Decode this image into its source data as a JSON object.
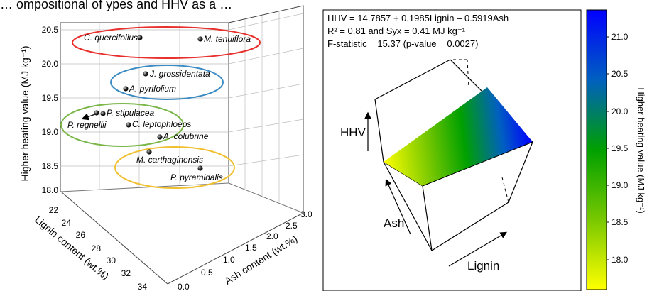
{
  "header_cut": "… ompositional of        ypes           and HHV as a                                  …",
  "chart_data": [
    {
      "type": "scatter",
      "title": "",
      "xlabel": "Ash content (wt.%)",
      "ylabel": "Lignin content (wt.%)",
      "zlabel": "Higher  heating value (MJ kg⁻¹)",
      "x_ticks": [
        "0.0",
        "0.5",
        "1.0",
        "1.5",
        "2.0",
        "2.5",
        "3.0"
      ],
      "y_ticks": [
        "22",
        "24",
        "26",
        "28",
        "30",
        "32",
        "34"
      ],
      "z_ticks": [
        "18.0",
        "18.5",
        "19.0",
        "19.5",
        "20.0",
        "20.5"
      ],
      "xlim": [
        0,
        3
      ],
      "ylim": [
        22,
        34
      ],
      "zlim": [
        18,
        20.5
      ],
      "points": [
        {
          "name": "C. quercifolius",
          "hhv": 20.38
        },
        {
          "name": "M. tenuiflora",
          "hhv": 20.34
        },
        {
          "name": "J. grossidentata",
          "hhv": 19.83
        },
        {
          "name": "A. pyrifolium",
          "hhv": 19.62
        },
        {
          "name": "P. stipulacea",
          "hhv": 19.24
        },
        {
          "name": "P. regnellii",
          "hhv": 19.24
        },
        {
          "name": "C. leptophloeos",
          "hhv": 19.05
        },
        {
          "name": "A. colubrine",
          "hhv": 18.88
        },
        {
          "name": "M. carthaginensis",
          "hhv": 18.62
        },
        {
          "name": "P. pyramidalis",
          "hhv": 18.38
        }
      ],
      "groups": [
        {
          "color": "#e8302c",
          "members": [
            "C. quercifolius",
            "M. tenuiflora"
          ]
        },
        {
          "color": "#3b8bc4",
          "members": [
            "J. grossidentata",
            "A. pyrifolium"
          ]
        },
        {
          "color": "#7ab648",
          "members": [
            "P. stipulacea",
            "P. regnellii",
            "C. leptophloeos",
            "A. colubrine"
          ]
        },
        {
          "color": "#f0c030",
          "members": [
            "M. carthaginensis",
            "P. pyramidalis"
          ]
        }
      ]
    },
    {
      "type": "heatmap",
      "equation": "HHV = 14.7857 + 0.1985Lignin – 0.5919Ash",
      "stats_line1": "R² = 0.81 and Syx = 0.41 MJ kg⁻¹",
      "stats_line2": "F-statistic = 15.37 (p-value = 0.0027)",
      "axis_labels": {
        "hhv": "HHV",
        "ash": "Ash",
        "lignin": "Lignin"
      },
      "colorbar": {
        "label": "Higher  heating value (MJ kg⁻¹)",
        "ticks": [
          "21.0",
          "20.5",
          "20.0",
          "19.5",
          "19.0",
          "18.5",
          "18.0"
        ],
        "range": [
          17.7,
          21.35
        ],
        "colors": [
          "#ffff00",
          "#78c800",
          "#00a000",
          "#0060c0",
          "#0000ff"
        ]
      }
    }
  ]
}
